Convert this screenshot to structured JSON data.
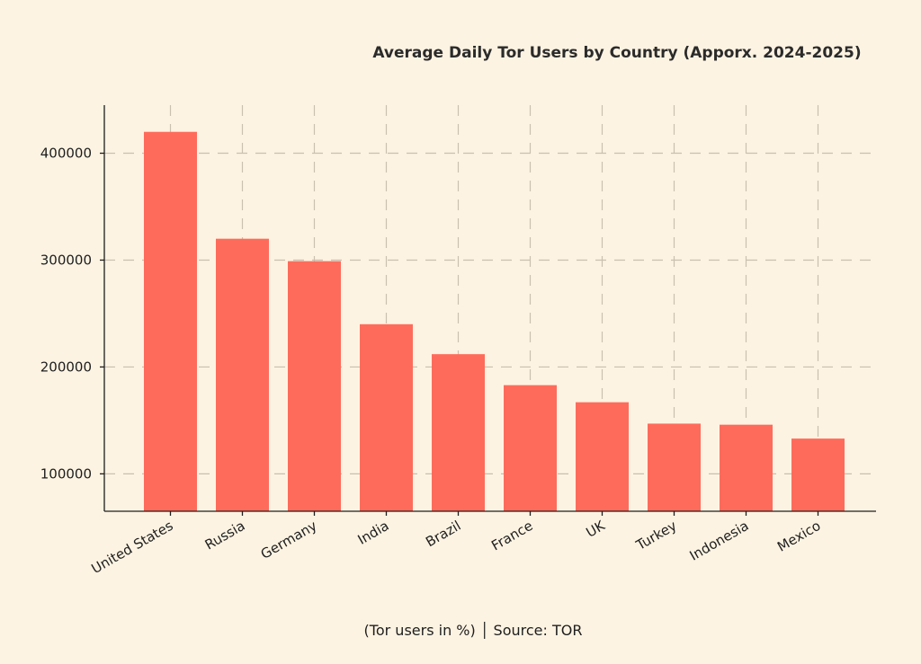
{
  "chart_data": {
    "type": "bar",
    "title": "Average Daily Tor Users by Country (Apporx. 2024-2025)",
    "xlabel": "",
    "ylabel": "",
    "categories": [
      "United States",
      "Russia",
      "Germany",
      "India",
      "Brazil",
      "France",
      "UK",
      "Turkey",
      "Indonesia",
      "Mexico"
    ],
    "values": [
      420000,
      320000,
      299000,
      240000,
      212000,
      183000,
      167000,
      147000,
      146000,
      133000
    ],
    "ylim": [
      65000,
      445000
    ],
    "yticks": [
      100000,
      200000,
      300000,
      400000
    ],
    "ytick_labels": [
      "100000",
      "200000",
      "300000",
      "400000"
    ],
    "grid": true,
    "bar_color": "#ff6b5b",
    "background_color": "#fdf3e2",
    "footer": "(Tor users in %) │ Source: TOR"
  }
}
